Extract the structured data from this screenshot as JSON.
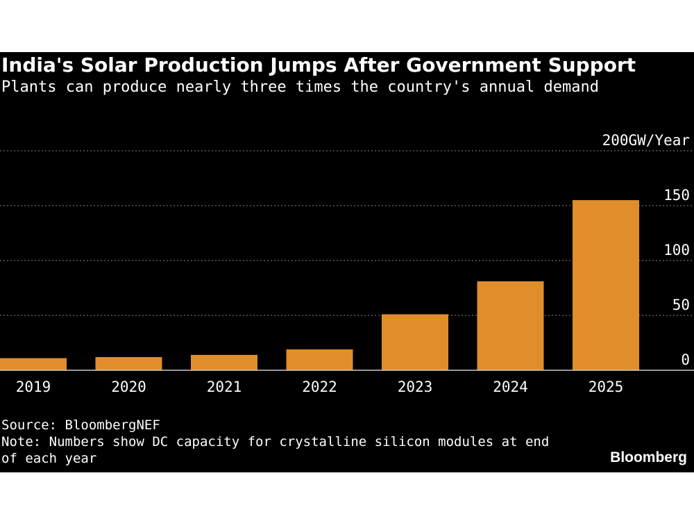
{
  "header": {
    "title": "India's Solar Production Jumps After Government Support",
    "subtitle": "Plants can produce nearly three times the country's annual demand"
  },
  "footer": {
    "source": "Source: BloombergNEF",
    "note": "Note: Numbers show DC capacity for crystalline silicon modules at end of each year",
    "brand": "Bloomberg"
  },
  "colors": {
    "bar": "#e08e2b",
    "background": "#000000",
    "text": "#ffffff",
    "grid": "#888888"
  },
  "chart_data": {
    "type": "bar",
    "title": "India's Solar Production Jumps After Government Support",
    "subtitle": "Plants can produce nearly three times the country's annual demand",
    "categories": [
      "2019",
      "2020",
      "2021",
      "2022",
      "2023",
      "2024",
      "2025"
    ],
    "values": [
      11,
      12,
      14,
      19,
      51,
      81,
      155
    ],
    "xlabel": "",
    "ylabel": "GW/Year",
    "ylim": [
      0,
      200
    ],
    "yticks": [
      {
        "value": 0,
        "label": "0"
      },
      {
        "value": 50,
        "label": "50"
      },
      {
        "value": 100,
        "label": "100"
      },
      {
        "value": 150,
        "label": "150"
      },
      {
        "value": 200,
        "label": "200GW/Year"
      }
    ],
    "grid": true,
    "legend": "none"
  }
}
